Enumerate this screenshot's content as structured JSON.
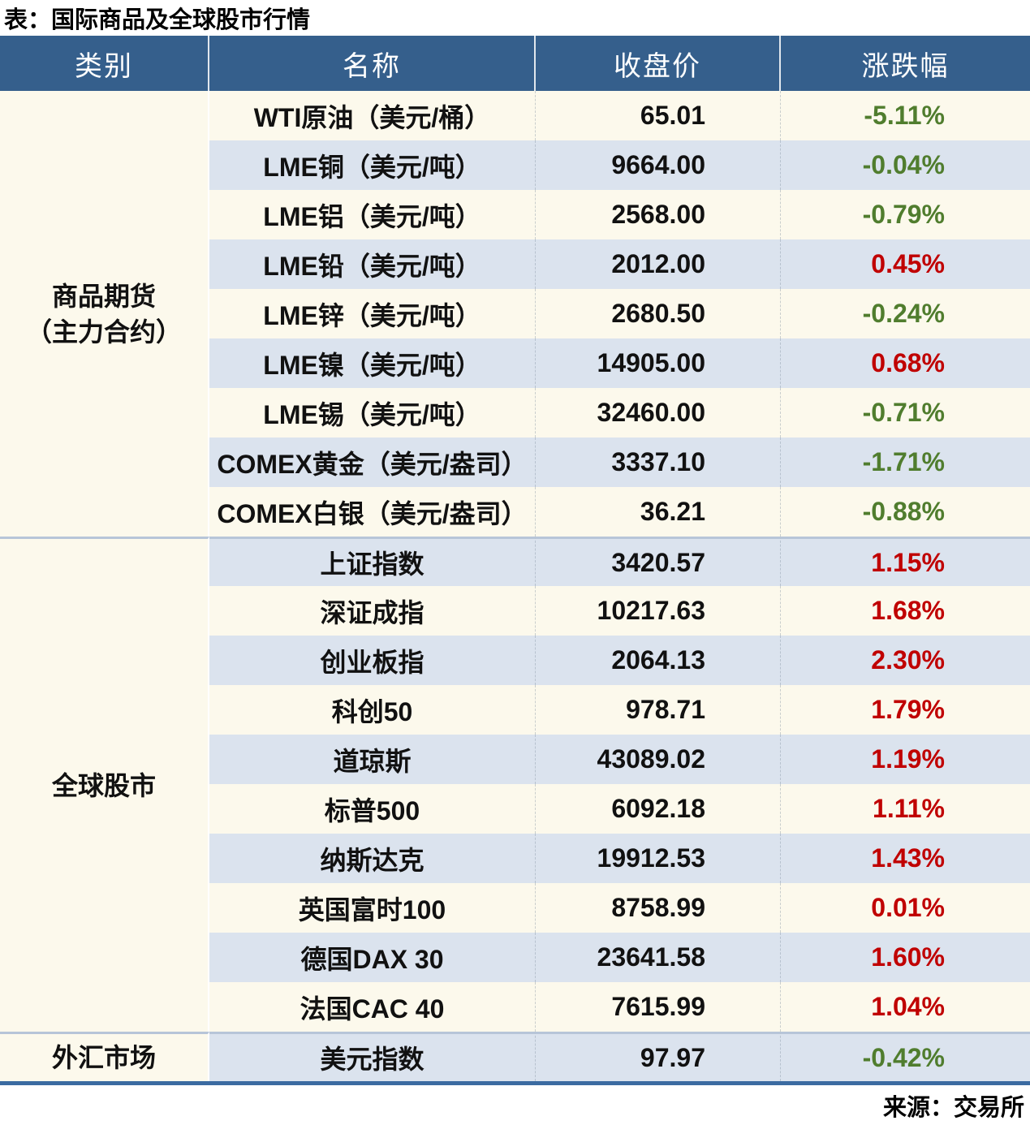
{
  "page": {
    "title": "表：国际商品及全球股市行情",
    "source": "来源：交易所"
  },
  "table": {
    "headers": [
      "类别",
      "名称",
      "收盘价",
      "涨跌幅"
    ],
    "groups": [
      {
        "category_lines": [
          "商品期货",
          "（主力合约）"
        ],
        "rows": [
          {
            "name": "WTI原油（美元/桶）",
            "close": "65.01",
            "change": "-5.11%"
          },
          {
            "name": "LME铜（美元/吨）",
            "close": "9664.00",
            "change": "-0.04%"
          },
          {
            "name": "LME铝（美元/吨）",
            "close": "2568.00",
            "change": "-0.79%"
          },
          {
            "name": "LME铅（美元/吨）",
            "close": "2012.00",
            "change": "0.45%"
          },
          {
            "name": "LME锌（美元/吨）",
            "close": "2680.50",
            "change": "-0.24%"
          },
          {
            "name": "LME镍（美元/吨）",
            "close": "14905.00",
            "change": "0.68%"
          },
          {
            "name": "LME锡（美元/吨）",
            "close": "32460.00",
            "change": "-0.71%"
          },
          {
            "name": "COMEX黄金（美元/盎司）",
            "close": "3337.10",
            "change": "-1.71%"
          },
          {
            "name": "COMEX白银（美元/盎司）",
            "close": "36.21",
            "change": "-0.88%"
          }
        ]
      },
      {
        "category_lines": [
          "全球股市"
        ],
        "rows": [
          {
            "name": "上证指数",
            "close": "3420.57",
            "change": "1.15%"
          },
          {
            "name": "深证成指",
            "close": "10217.63",
            "change": "1.68%"
          },
          {
            "name": "创业板指",
            "close": "2064.13",
            "change": "2.30%"
          },
          {
            "name": "科创50",
            "close": "978.71",
            "change": "1.79%"
          },
          {
            "name": "道琼斯",
            "close": "43089.02",
            "change": "1.19%"
          },
          {
            "name": "标普500",
            "close": "6092.18",
            "change": "1.11%"
          },
          {
            "name": "纳斯达克",
            "close": "19912.53",
            "change": "1.43%"
          },
          {
            "name": "英国富时100",
            "close": "8758.99",
            "change": "0.01%"
          },
          {
            "name": "德国DAX 30",
            "close": "23641.58",
            "change": "1.60%"
          },
          {
            "name": "法国CAC 40",
            "close": "7615.99",
            "change": "1.04%"
          }
        ]
      },
      {
        "category_lines": [
          "外汇市场"
        ],
        "rows": [
          {
            "name": "美元指数",
            "close": "97.97",
            "change": "-0.42%"
          }
        ]
      }
    ]
  },
  "chart_data": {
    "type": "table",
    "title": "表：国际商品及全球股市行情",
    "columns": [
      "类别",
      "名称",
      "收盘价",
      "涨跌幅"
    ],
    "rows": [
      [
        "商品期货（主力合约）",
        "WTI原油（美元/桶）",
        65.01,
        -5.11
      ],
      [
        "商品期货（主力合约）",
        "LME铜（美元/吨）",
        9664.0,
        -0.04
      ],
      [
        "商品期货（主力合约）",
        "LME铝（美元/吨）",
        2568.0,
        -0.79
      ],
      [
        "商品期货（主力合约）",
        "LME铅（美元/吨）",
        2012.0,
        0.45
      ],
      [
        "商品期货（主力合约）",
        "LME锌（美元/吨）",
        2680.5,
        -0.24
      ],
      [
        "商品期货（主力合约）",
        "LME镍（美元/吨）",
        14905.0,
        0.68
      ],
      [
        "商品期货（主力合约）",
        "LME锡（美元/吨）",
        32460.0,
        -0.71
      ],
      [
        "商品期货（主力合约）",
        "COMEX黄金（美元/盎司）",
        3337.1,
        -1.71
      ],
      [
        "商品期货（主力合约）",
        "COMEX白银（美元/盎司）",
        36.21,
        -0.88
      ],
      [
        "全球股市",
        "上证指数",
        3420.57,
        1.15
      ],
      [
        "全球股市",
        "深证成指",
        10217.63,
        1.68
      ],
      [
        "全球股市",
        "创业板指",
        2064.13,
        2.3
      ],
      [
        "全球股市",
        "科创50",
        978.71,
        1.79
      ],
      [
        "全球股市",
        "道琼斯",
        43089.02,
        1.19
      ],
      [
        "全球股市",
        "标普500",
        6092.18,
        1.11
      ],
      [
        "全球股市",
        "纳斯达克",
        19912.53,
        1.43
      ],
      [
        "全球股市",
        "英国富时100",
        8758.99,
        0.01
      ],
      [
        "全球股市",
        "德国DAX 30",
        23641.58,
        1.6
      ],
      [
        "全球股市",
        "法国CAC 40",
        7615.99,
        1.04
      ],
      [
        "外汇市场",
        "美元指数",
        97.97,
        -0.42
      ]
    ],
    "change_unit": "%",
    "source": "来源：交易所",
    "notes": "positive change shown red, negative change shown green"
  },
  "colors": {
    "header_bg": "#355f8c",
    "row_light": "#fcf9ec",
    "row_blue": "#dbe3ee",
    "positive": "#c00000",
    "negative": "#507d2e",
    "group_divider": "#b7c5d8",
    "bottom_border": "#3b6ba1"
  }
}
